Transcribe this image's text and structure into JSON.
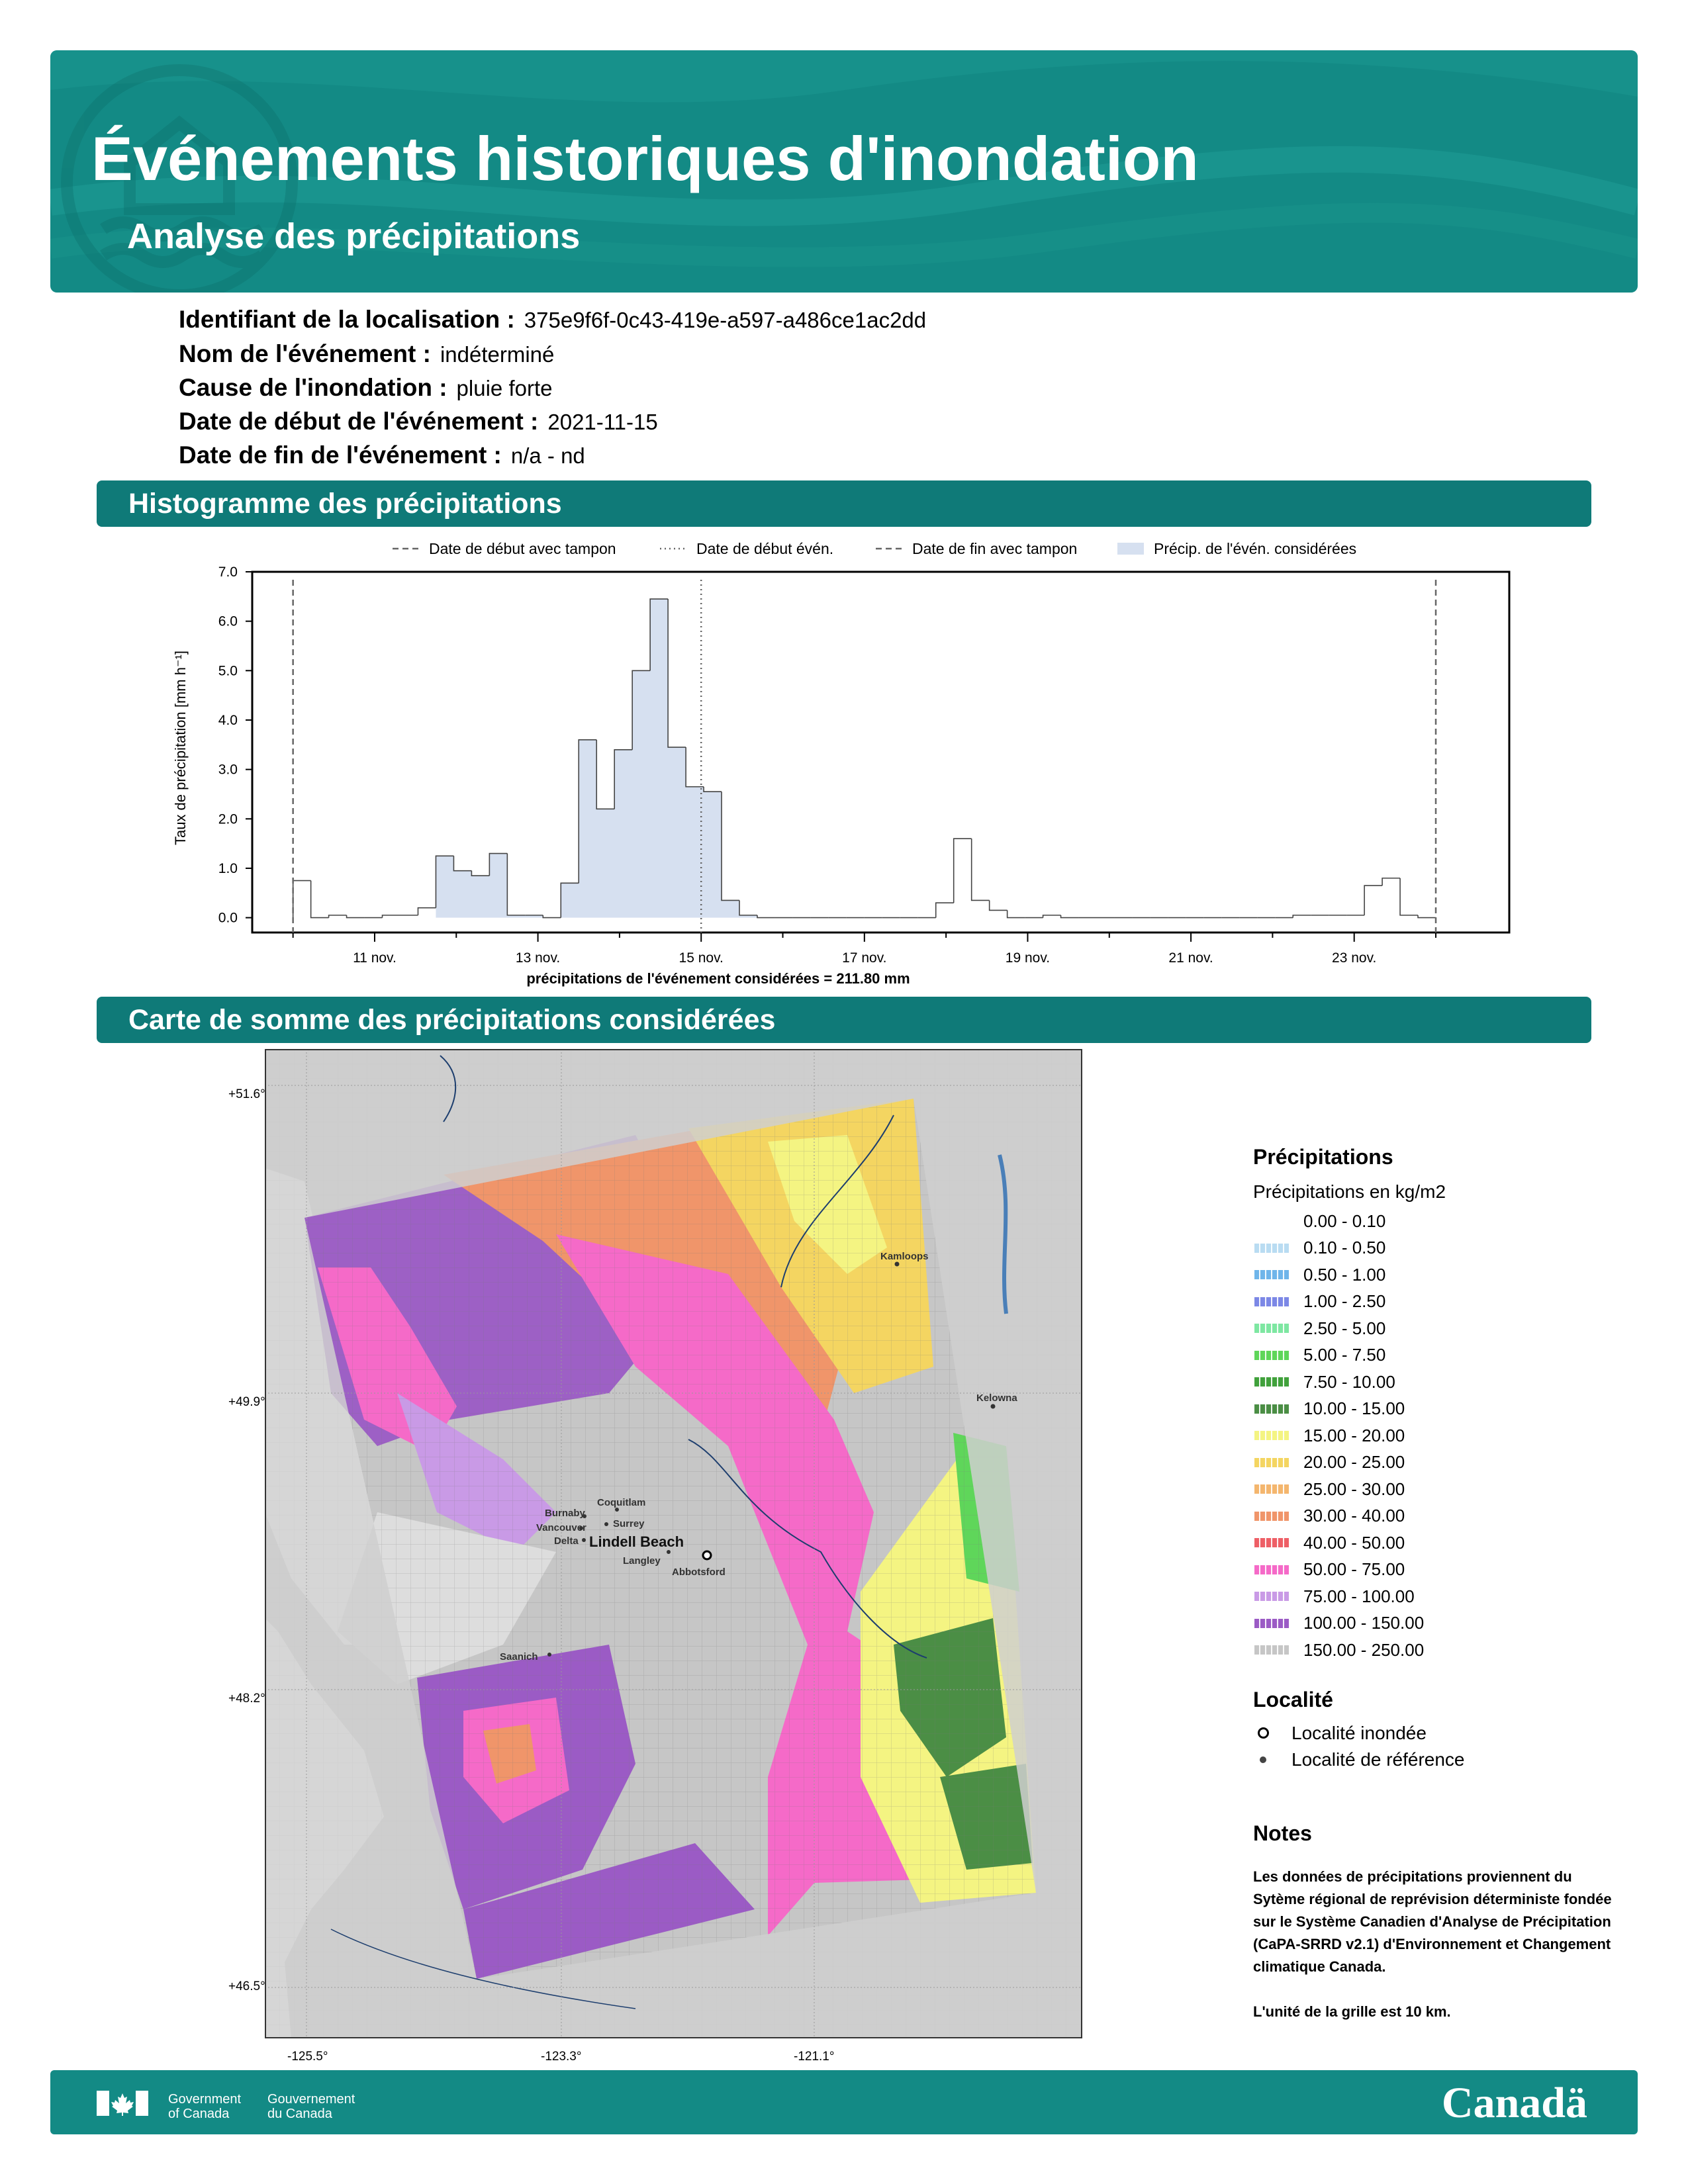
{
  "header": {
    "title": "Événements historiques d'inondation",
    "subtitle": "Analyse des précipitations"
  },
  "info": [
    {
      "label": "Identifiant de la localisation :",
      "value": "375e9f6f-0c43-419e-a597-a486ce1ac2dd"
    },
    {
      "label": "Nom de l'événement :",
      "value": "indéterminé"
    },
    {
      "label": "Cause de l'inondation :",
      "value": "pluie forte"
    },
    {
      "label": "Date de début de l'événement :",
      "value": "2021-11-15"
    },
    {
      "label": "Date de fin de l'événement :",
      "value": "n/a - nd"
    }
  ],
  "sections": {
    "histogram": "Histogramme des précipitations",
    "map": "Carte de somme des précipitations considérées"
  },
  "chart_data": {
    "type": "area",
    "step": true,
    "legend": {
      "placement": "top",
      "items": [
        {
          "label": "Date de début avec tampon",
          "style": "dashed"
        },
        {
          "label": "Date de début évén.",
          "style": "dotted"
        },
        {
          "label": "Date de fin avec tampon",
          "style": "dashed"
        },
        {
          "label": "Précip. de l'évén. considérées",
          "style": "fill",
          "color": "#d6e0f0"
        }
      ]
    },
    "ylabel": "Taux de précipitation [mm h⁻¹]",
    "xlabel": "précipitations de l'événement considérées = 211.80 mm",
    "ylim": [
      -0.3,
      7.0
    ],
    "yticks": [
      "0.0",
      "1.0",
      "2.0",
      "3.0",
      "4.0",
      "5.0",
      "6.0",
      "7.0"
    ],
    "xticks": [
      "11 nov.",
      "13 nov.",
      "15 nov.",
      "17 nov.",
      "19 nov.",
      "21 nov.",
      "23 nov."
    ],
    "x_unit": "days since 10 Nov 2021 (6-hour bins)",
    "buffer_start": 0,
    "event_start": 5,
    "buffer_end": 14,
    "considered_range": [
      1.75,
      6.25
    ],
    "values": [
      0.75,
      0.0,
      0.05,
      0.0,
      0.0,
      0.05,
      0.05,
      0.2,
      1.25,
      0.95,
      0.85,
      1.3,
      0.05,
      0.05,
      0.0,
      0.7,
      3.6,
      2.2,
      3.4,
      5.0,
      6.45,
      3.45,
      2.65,
      2.55,
      0.35,
      0.05,
      0.0,
      0.0,
      0.0,
      0.0,
      0.0,
      0.0,
      0.0,
      0.0,
      0.0,
      0.0,
      0.3,
      1.6,
      0.35,
      0.15,
      0.0,
      0.0,
      0.05,
      0.0,
      0.0,
      0.0,
      0.0,
      0.0,
      0.0,
      0.0,
      0.0,
      0.0,
      0.0,
      0.0,
      0.0,
      0.0,
      0.05,
      0.05,
      0.05,
      0.05,
      0.65,
      0.8,
      0.05,
      0.0
    ]
  },
  "map": {
    "lat_labels": [
      "+51.6°",
      "+49.9°",
      "+48.2°",
      "+46.5°"
    ],
    "lon_labels": [
      "-125.5°",
      "-123.3°",
      "-121.1°"
    ],
    "places": [
      "Kamloops",
      "Kelowna",
      "Coquitlam",
      "Burnaby",
      "Surrey",
      "Vancouver",
      "Delta",
      "Lindell Beach",
      "Langley",
      "Abbotsford",
      "Saanich"
    ]
  },
  "legend": {
    "title": "Précipitations",
    "subtitle": "Précipitations en kg/m2",
    "items": [
      {
        "label": "0.00 - 0.10",
        "color": "#ffffff"
      },
      {
        "label": "0.10 - 0.50",
        "color": "#b9dcf2"
      },
      {
        "label": "0.50 - 1.00",
        "color": "#6fb5ea"
      },
      {
        "label": "1.00 - 2.50",
        "color": "#7c88e6"
      },
      {
        "label": "2.50 - 5.00",
        "color": "#7ee7a2"
      },
      {
        "label": "5.00 - 7.50",
        "color": "#5fd65a"
      },
      {
        "label": "7.50 - 10.00",
        "color": "#41a13c"
      },
      {
        "label": "10.00 - 15.00",
        "color": "#4b8e45"
      },
      {
        "label": "15.00 - 20.00",
        "color": "#f4f482"
      },
      {
        "label": "20.00 - 25.00",
        "color": "#f4d561"
      },
      {
        "label": "25.00 - 30.00",
        "color": "#f4b66e"
      },
      {
        "label": "30.00 - 40.00",
        "color": "#f0956a"
      },
      {
        "label": "40.00 - 50.00",
        "color": "#ee5f66"
      },
      {
        "label": "50.00 - 75.00",
        "color": "#f56ac8"
      },
      {
        "label": "75.00 - 100.00",
        "color": "#c99ae6"
      },
      {
        "label": "100.00 - 150.00",
        "color": "#9b5bc5"
      },
      {
        "label": "150.00 - 250.00",
        "color": "#c6c6c6"
      }
    ],
    "locality_title": "Localité",
    "locality_items": [
      {
        "label": "Localité inondée",
        "symbol": "open-circle"
      },
      {
        "label": "Localité de référence",
        "symbol": "dot"
      }
    ]
  },
  "notes": {
    "title": "Notes",
    "text": "Les données de précipitations proviennent du Sytème régional de reprévision déterministe fondée sur le Système Canadien d'Analyse de Précipitation (CaPA-SRRD v2.1) d'Environnement et Changement climatique Canada.",
    "unit": "L'unité de la grille est 10 km."
  },
  "footer": {
    "gov_en": [
      "Government",
      "of Canada"
    ],
    "gov_fr": [
      "Gouvernement",
      "du Canada"
    ],
    "wordmark": "Canadä"
  }
}
